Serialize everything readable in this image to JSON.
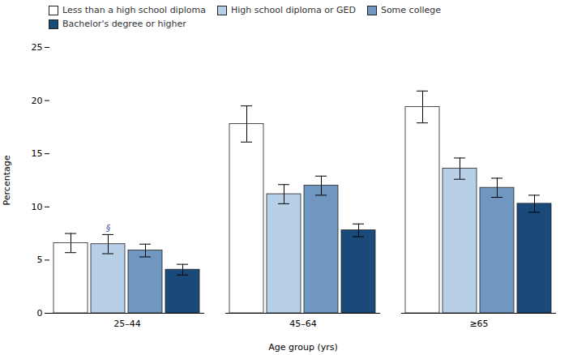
{
  "chart_data": {
    "type": "bar",
    "categories": [
      "25–44",
      "45–64",
      "≥65"
    ],
    "series": [
      {
        "name": "Less than a high school diploma",
        "color": "#ffffff",
        "values": [
          6.6,
          17.8,
          19.4
        ],
        "errors": [
          0.9,
          1.7,
          1.5
        ]
      },
      {
        "name": "High school diploma or GED",
        "color": "#b8cfe8",
        "values": [
          6.5,
          11.2,
          13.6
        ],
        "errors": [
          0.9,
          0.9,
          1.0
        ]
      },
      {
        "name": "Some college",
        "color": "#7097c0",
        "values": [
          5.9,
          12.0,
          11.8
        ],
        "errors": [
          0.6,
          0.9,
          0.9
        ]
      },
      {
        "name": "Bachelor's degree or higher",
        "color": "#1a4a7a",
        "values": [
          4.1,
          7.8,
          10.3
        ],
        "errors": [
          0.5,
          0.6,
          0.8
        ]
      }
    ],
    "xlabel": "Age group (yrs)",
    "ylabel": "Percentage",
    "ylim": [
      0,
      25
    ],
    "yticks": [
      0,
      5,
      10,
      15,
      20,
      25
    ],
    "grid": false,
    "legend": "upper left",
    "annotations": [
      {
        "text": "§",
        "category": "25–44",
        "series": "High school diploma or GED",
        "color": "#3355aa"
      }
    ]
  }
}
